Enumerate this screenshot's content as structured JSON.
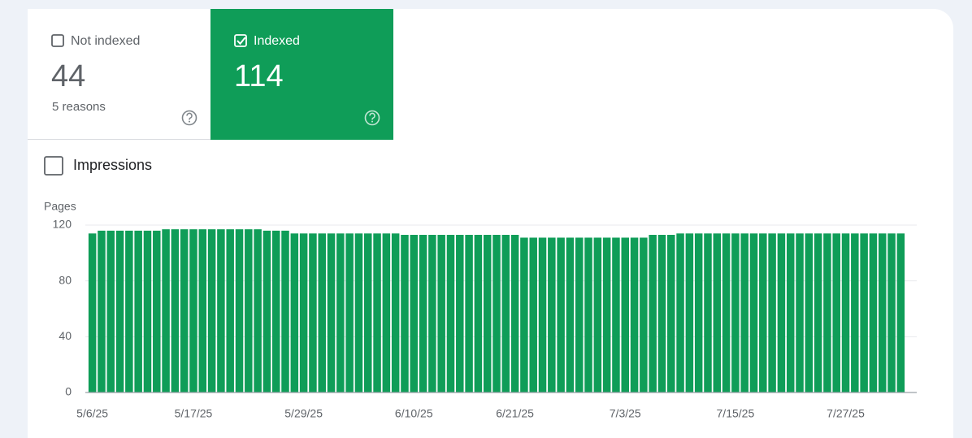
{
  "tabs": [
    {
      "label": "Not indexed",
      "value": 44,
      "subtitle": "5 reasons",
      "checked": false
    },
    {
      "label": "Indexed",
      "value": 114,
      "checked": true
    }
  ],
  "impressions": {
    "label": "Impressions",
    "checked": false
  },
  "chart_data": {
    "type": "bar",
    "y_label": "Pages",
    "categories": [
      "5/6/25",
      null,
      null,
      null,
      null,
      null,
      null,
      null,
      null,
      null,
      null,
      "5/17/25",
      null,
      null,
      null,
      null,
      null,
      null,
      null,
      null,
      null,
      null,
      null,
      "5/29/25",
      null,
      null,
      null,
      null,
      null,
      null,
      null,
      null,
      null,
      null,
      null,
      "6/10/25",
      null,
      null,
      null,
      null,
      null,
      null,
      null,
      null,
      null,
      null,
      "6/21/25",
      null,
      null,
      null,
      null,
      null,
      null,
      null,
      null,
      null,
      null,
      null,
      "7/3/25",
      null,
      null,
      null,
      null,
      null,
      null,
      null,
      null,
      null,
      null,
      null,
      "7/15/25",
      null,
      null,
      null,
      null,
      null,
      null,
      null,
      null,
      null,
      null,
      null,
      "7/27/25",
      null,
      null,
      null,
      null,
      null,
      null
    ],
    "values": [
      114,
      116,
      116,
      116,
      116,
      116,
      116,
      116,
      117,
      117,
      117,
      117,
      117,
      117,
      117,
      117,
      117,
      117,
      117,
      116,
      116,
      116,
      114,
      114,
      114,
      114,
      114,
      114,
      114,
      114,
      114,
      114,
      114,
      114,
      113,
      113,
      113,
      113,
      113,
      113,
      113,
      113,
      113,
      113,
      113,
      113,
      113,
      111,
      111,
      111,
      111,
      111,
      111,
      111,
      111,
      111,
      111,
      111,
      111,
      111,
      111,
      113,
      113,
      113,
      114,
      114,
      114,
      114,
      114,
      114,
      114,
      114,
      114,
      114,
      114,
      114,
      114,
      114,
      114,
      114,
      114,
      114,
      114,
      114,
      114,
      114,
      114,
      114,
      114
    ],
    "color": "#0f9d58",
    "ylim": [
      0,
      120
    ],
    "yticks": [
      0,
      40,
      80,
      120
    ],
    "grid": true
  }
}
